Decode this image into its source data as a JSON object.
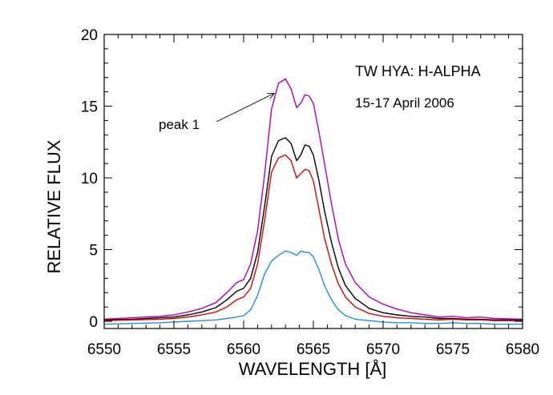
{
  "chart_data": {
    "type": "line",
    "title": "TW HYA: H-ALPHA",
    "subtitle": "15-17 April 2006",
    "xlabel": "WAVELENGTH [Å]",
    "ylabel": "RELATIVE FLUX",
    "xlim": [
      6550,
      6580
    ],
    "ylim": [
      -0.5,
      20
    ],
    "xticks": [
      "6550",
      "6555",
      "6560",
      "6565",
      "6570",
      "6575",
      "6580"
    ],
    "yticks": [
      "0",
      "5",
      "10",
      "15",
      "20"
    ],
    "grid": false,
    "annotation": {
      "text": "peak 1",
      "x": 6562.2,
      "y": 15.9
    },
    "series": [
      {
        "color": "#b000c0",
        "x": [
          6550,
          6552,
          6554,
          6555,
          6556,
          6557,
          6558,
          6558.8,
          6559.5,
          6560,
          6560.5,
          6561,
          6561.5,
          6562,
          6562.5,
          6563,
          6563.4,
          6563.8,
          6564.1,
          6564.4,
          6564.7,
          6565,
          6565.4,
          6565.8,
          6566.3,
          6566.8,
          6567.3,
          6568,
          6569,
          6570,
          6571,
          6572,
          6573,
          6574,
          6575,
          6576,
          6577,
          6578,
          6580
        ],
        "y": [
          0.15,
          0.25,
          0.35,
          0.45,
          0.65,
          0.9,
          1.3,
          2.0,
          2.7,
          2.9,
          4.0,
          6.3,
          10.2,
          14.8,
          16.6,
          16.9,
          16.2,
          14.9,
          15.2,
          15.8,
          15.7,
          15.2,
          13.2,
          11.0,
          8.2,
          5.7,
          4.0,
          2.7,
          1.7,
          1.2,
          0.85,
          0.6,
          0.45,
          0.3,
          0.35,
          0.25,
          0.3,
          0.2,
          0.15
        ]
      },
      {
        "color": "#000000",
        "x": [
          6550,
          6552,
          6554,
          6555,
          6556,
          6557,
          6558,
          6558.8,
          6559.5,
          6560,
          6560.5,
          6561,
          6561.5,
          6562,
          6562.5,
          6563,
          6563.4,
          6563.8,
          6564.1,
          6564.4,
          6564.7,
          6565,
          6565.4,
          6565.8,
          6566.3,
          6566.8,
          6567.3,
          6568,
          6569,
          6570,
          6571,
          6572,
          6573,
          6574,
          6575,
          6576,
          6577,
          6578,
          6580
        ],
        "y": [
          0.1,
          0.15,
          0.25,
          0.3,
          0.45,
          0.65,
          0.95,
          1.5,
          2.1,
          2.3,
          3.0,
          4.8,
          8.0,
          11.5,
          12.6,
          12.8,
          12.4,
          11.2,
          11.6,
          12.3,
          12.2,
          11.6,
          9.8,
          7.7,
          5.5,
          3.7,
          2.5,
          1.6,
          0.9,
          0.6,
          0.45,
          0.35,
          0.3,
          0.2,
          0.2,
          0.15,
          0.15,
          0.1,
          0.1
        ]
      },
      {
        "color": "#e00000",
        "x": [
          6550,
          6552,
          6554,
          6555,
          6556,
          6557,
          6558,
          6558.8,
          6559.5,
          6560,
          6560.5,
          6561,
          6561.5,
          6562,
          6562.5,
          6563,
          6563.4,
          6563.8,
          6564.1,
          6564.4,
          6564.7,
          6565,
          6565.4,
          6565.8,
          6566.3,
          6566.8,
          6567.3,
          6568,
          6569,
          6570,
          6571,
          6572,
          6573,
          6574,
          6575,
          6576,
          6577,
          6578,
          6580
        ],
        "y": [
          0.05,
          0.1,
          0.15,
          0.2,
          0.3,
          0.45,
          0.65,
          1.0,
          1.5,
          1.7,
          2.3,
          4.0,
          7.0,
          10.4,
          11.4,
          11.6,
          11.2,
          10.0,
          10.3,
          10.6,
          10.5,
          9.8,
          7.8,
          5.8,
          4.0,
          2.6,
          1.7,
          1.0,
          0.55,
          0.35,
          0.25,
          0.2,
          0.15,
          0.1,
          0.15,
          0.1,
          0.1,
          0.05,
          0.05
        ]
      },
      {
        "color": "#2090e0",
        "x": [
          6550,
          6552,
          6554,
          6555,
          6556,
          6557,
          6558,
          6558.8,
          6559.5,
          6560,
          6560.5,
          6561,
          6561.5,
          6562,
          6562.5,
          6563,
          6563.4,
          6563.8,
          6564.1,
          6564.4,
          6564.7,
          6565,
          6565.4,
          6565.8,
          6566.3,
          6566.8,
          6567.3,
          6568,
          6569,
          6570,
          6571,
          6572,
          6573,
          6574,
          6575,
          6576,
          6577,
          6578,
          6580
        ],
        "y": [
          -0.2,
          -0.15,
          -0.1,
          -0.05,
          0.0,
          0.05,
          0.1,
          0.2,
          0.3,
          0.4,
          0.8,
          1.8,
          3.3,
          4.2,
          4.6,
          4.9,
          4.8,
          4.6,
          4.9,
          4.8,
          4.8,
          4.5,
          3.6,
          2.5,
          1.5,
          0.8,
          0.4,
          0.15,
          0.05,
          -0.05,
          -0.1,
          -0.1,
          -0.15,
          -0.15,
          -0.1,
          -0.15,
          -0.15,
          -0.2,
          -0.2
        ]
      }
    ]
  }
}
